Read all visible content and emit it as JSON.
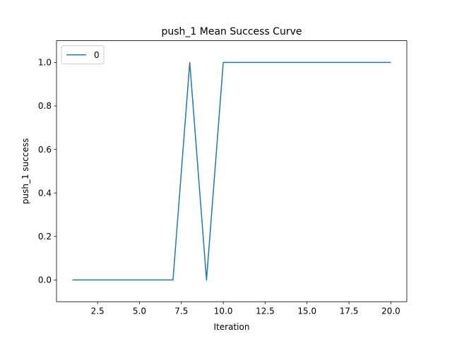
{
  "chart_data": {
    "type": "line",
    "title": "push_1 Mean Success Curve",
    "xlabel": "Iteration",
    "ylabel": "push_1 success",
    "xlim": [
      0.05,
      20.95
    ],
    "ylim": [
      -0.1,
      1.1
    ],
    "xticks": [
      2.5,
      5.0,
      7.5,
      10.0,
      12.5,
      15.0,
      17.5,
      20.0
    ],
    "xtick_labels": [
      "2.5",
      "5.0",
      "7.5",
      "10.0",
      "12.5",
      "15.0",
      "17.5",
      "20.0"
    ],
    "yticks": [
      0.0,
      0.2,
      0.4,
      0.6,
      0.8,
      1.0
    ],
    "ytick_labels": [
      "0.0",
      "0.2",
      "0.4",
      "0.6",
      "0.8",
      "1.0"
    ],
    "grid": false,
    "legend_position": "top-left",
    "series": [
      {
        "name": "0",
        "color": "#1f77b4",
        "x": [
          1,
          2,
          3,
          4,
          5,
          6,
          7,
          8,
          9,
          10,
          11,
          12,
          13,
          14,
          15,
          16,
          17,
          18,
          19,
          20
        ],
        "y": [
          0,
          0,
          0,
          0,
          0,
          0,
          0,
          1,
          0,
          1,
          1,
          1,
          1,
          1,
          1,
          1,
          1,
          1,
          1,
          1
        ]
      }
    ]
  }
}
